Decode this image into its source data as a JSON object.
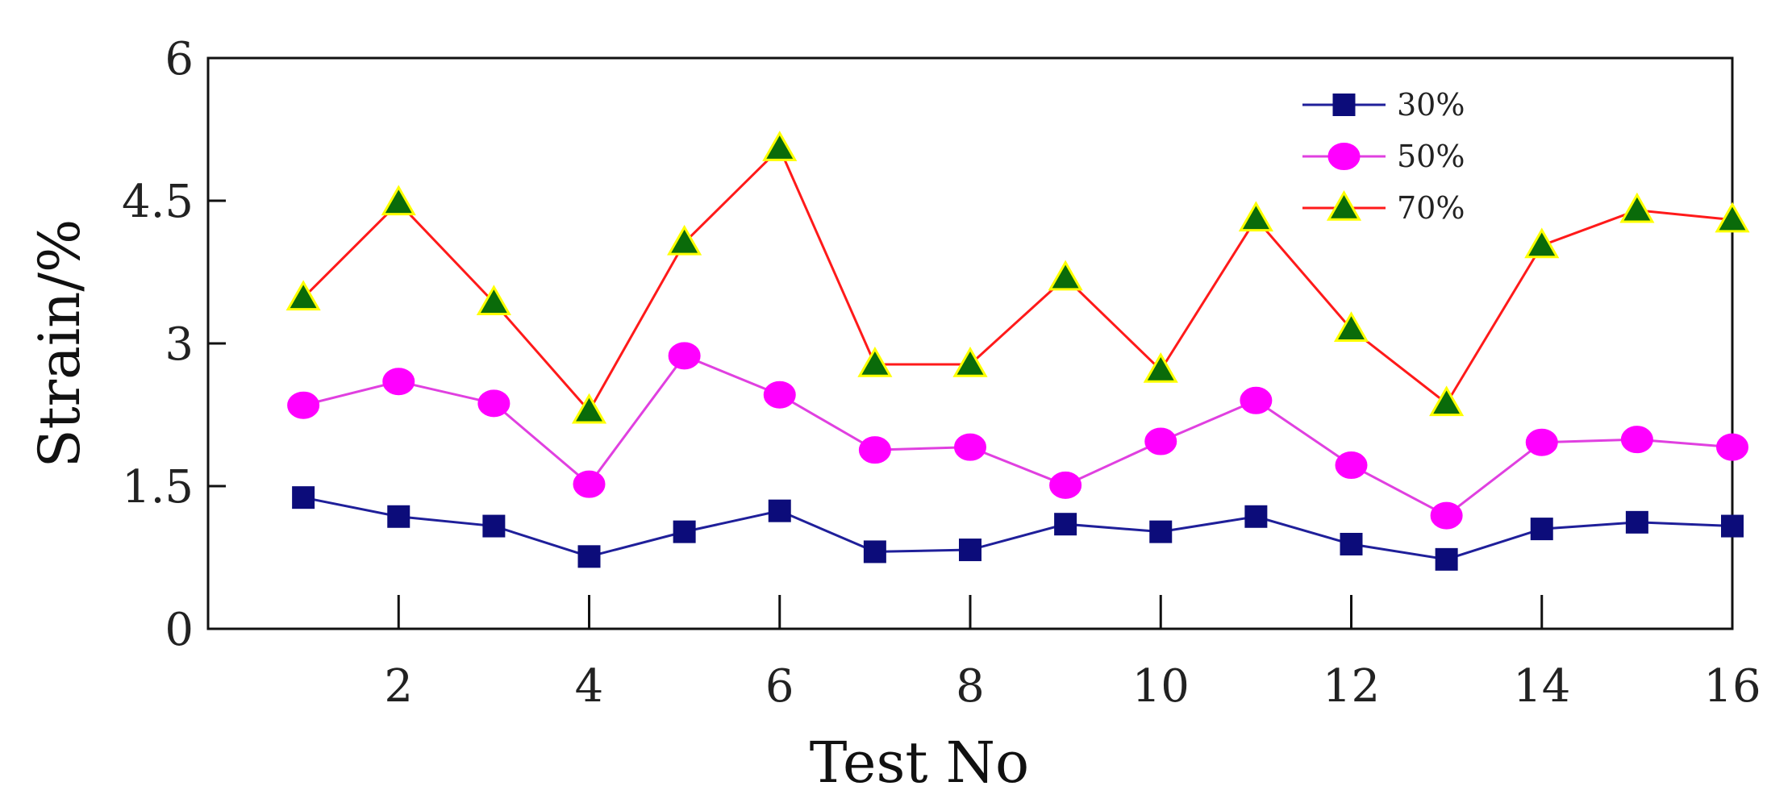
{
  "chart_data": {
    "type": "line",
    "title": "",
    "xlabel": "Test No",
    "ylabel": "Strain/%",
    "xlim": [
      0,
      16
    ],
    "ylim": [
      0,
      6
    ],
    "xticks": [
      2,
      4,
      6,
      8,
      10,
      12,
      14,
      16
    ],
    "yticks": [
      0,
      1.5,
      3,
      4.5,
      6
    ],
    "x": [
      1,
      2,
      3,
      4,
      5,
      6,
      7,
      8,
      9,
      10,
      11,
      12,
      13,
      14,
      15,
      16
    ],
    "grid": false,
    "legend": "top-right",
    "series": [
      {
        "name": "30%",
        "marker": "square",
        "line_color": "#1f1f9a",
        "marker_fill": "#0c0c7a",
        "marker_stroke": "#0c0c7a",
        "values": [
          1.38,
          1.18,
          1.08,
          0.76,
          1.02,
          1.24,
          0.81,
          0.83,
          1.1,
          1.02,
          1.18,
          0.89,
          0.73,
          1.05,
          1.12,
          1.08
        ]
      },
      {
        "name": "50%",
        "marker": "circle",
        "line_color": "#e040e0",
        "marker_fill": "#ff00ff",
        "marker_stroke": "#ff00ff",
        "values": [
          2.35,
          2.6,
          2.37,
          1.52,
          2.87,
          2.46,
          1.88,
          1.91,
          1.51,
          1.97,
          2.4,
          1.72,
          1.19,
          1.96,
          1.99,
          1.91
        ]
      },
      {
        "name": "70%",
        "marker": "triangle",
        "line_color": "#ff1a1a",
        "marker_fill": "#0a6b0a",
        "marker_stroke": "#ffff00",
        "values": [
          3.48,
          4.48,
          3.43,
          2.29,
          4.06,
          5.05,
          2.78,
          2.78,
          3.69,
          2.72,
          4.31,
          3.15,
          2.37,
          4.03,
          4.4,
          4.3
        ]
      }
    ]
  }
}
